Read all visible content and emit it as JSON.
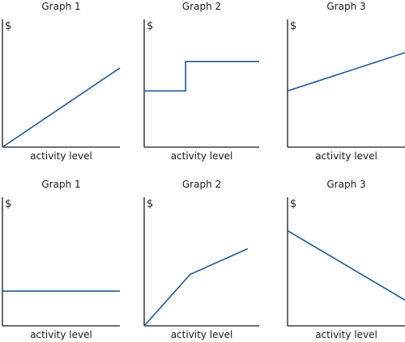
{
  "chart_data": [
    {
      "type": "line",
      "title": "Graph 1",
      "ylabel": "$",
      "xlabel": "activity level",
      "xlim": [
        0,
        10
      ],
      "ylim": [
        0,
        10
      ],
      "line_color": "#1f5a96",
      "series": [
        {
          "x": [
            0,
            10
          ],
          "y": [
            0,
            6.2
          ]
        }
      ]
    },
    {
      "type": "line",
      "title": "Graph 2",
      "ylabel": "$",
      "xlabel": "activity level",
      "xlim": [
        0,
        10
      ],
      "ylim": [
        0,
        10
      ],
      "line_color": "#1f5a96",
      "series": [
        {
          "x": [
            0,
            3.6,
            3.6,
            10
          ],
          "y": [
            4.4,
            4.4,
            6.7,
            6.7
          ]
        }
      ]
    },
    {
      "type": "line",
      "title": "Graph 3",
      "ylabel": "$",
      "xlabel": "activity level",
      "xlim": [
        0,
        10
      ],
      "ylim": [
        0,
        10
      ],
      "line_color": "#1f5a96",
      "series": [
        {
          "x": [
            0,
            10
          ],
          "y": [
            4.4,
            7.4
          ]
        }
      ]
    },
    {
      "type": "line",
      "title": "Graph 1",
      "ylabel": "$",
      "xlabel": "activity level",
      "xlim": [
        0,
        10
      ],
      "ylim": [
        0,
        10
      ],
      "line_color": "#1f5a96",
      "series": [
        {
          "x": [
            0,
            10
          ],
          "y": [
            2.7,
            2.7
          ]
        }
      ]
    },
    {
      "type": "line",
      "title": "Graph 2",
      "ylabel": "$",
      "xlabel": "activity level",
      "xlim": [
        0,
        10
      ],
      "ylim": [
        0,
        10
      ],
      "line_color": "#1f5a96",
      "series": [
        {
          "x": [
            0,
            4,
            9
          ],
          "y": [
            0,
            4,
            6
          ]
        }
      ]
    },
    {
      "type": "line",
      "title": "Graph 3",
      "ylabel": "$",
      "xlabel": "activity level",
      "xlim": [
        0,
        10
      ],
      "ylim": [
        0,
        10
      ],
      "line_color": "#1f5a96",
      "series": [
        {
          "x": [
            0,
            10
          ],
          "y": [
            7.4,
            2.0
          ]
        }
      ]
    }
  ]
}
